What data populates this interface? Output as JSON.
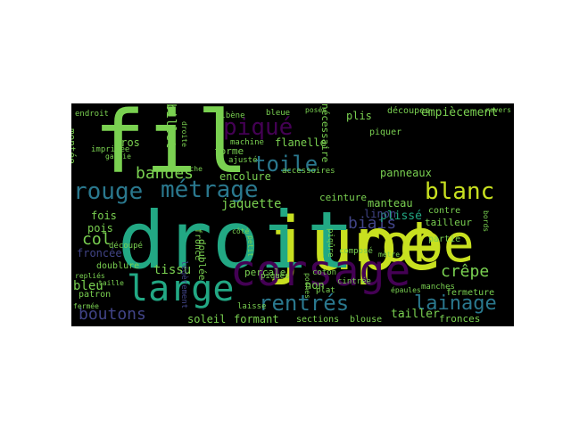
{
  "palette": {
    "yellow_green": "#c8e020",
    "light_green": "#7ad151",
    "teal": "#22a884",
    "blue": "#2a788e",
    "indigo": "#414487",
    "purple": "#440154",
    "deep_purple": "#3b1c5a"
  },
  "words": [
    {
      "text": "jupe",
      "color": "yellow_green"
    },
    {
      "text": "fil",
      "color": "light_green"
    },
    {
      "text": "droit",
      "color": "teal"
    },
    {
      "text": "robe",
      "color": "yellow_green"
    },
    {
      "text": "corsage",
      "color": "purple"
    },
    {
      "text": "large",
      "color": "teal"
    },
    {
      "text": "métrage",
      "color": "blue"
    },
    {
      "text": "piqué",
      "color": "purple"
    },
    {
      "text": "toile",
      "color": "blue"
    },
    {
      "text": "blanc",
      "color": "yellow_green"
    },
    {
      "text": "rouge",
      "color": "blue"
    },
    {
      "text": "rentrés",
      "color": "blue"
    },
    {
      "text": "lainage",
      "color": "blue"
    },
    {
      "text": "boutons",
      "color": "indigo"
    },
    {
      "text": "bandes",
      "color": "light_green"
    },
    {
      "text": "biais",
      "color": "indigo"
    },
    {
      "text": "col",
      "color": "light_green"
    },
    {
      "text": "crêpe",
      "color": "light_green"
    },
    {
      "text": "tissu",
      "color": "light_green"
    },
    {
      "text": "empiècement",
      "color": "light_green"
    },
    {
      "text": "jaquette",
      "color": "light_green"
    },
    {
      "text": "encolure",
      "color": "light_green"
    },
    {
      "text": "ceinture",
      "color": "light_green"
    },
    {
      "text": "panneaux",
      "color": "light_green"
    },
    {
      "text": "manteau",
      "color": "light_green"
    },
    {
      "text": "tailleur",
      "color": "light_green"
    },
    {
      "text": "contre",
      "color": "light_green"
    },
    {
      "text": "plissé",
      "color": "teal"
    },
    {
      "text": "partie",
      "color": "light_green"
    },
    {
      "text": "linon",
      "color": "indigo"
    },
    {
      "text": "flanelle",
      "color": "light_green"
    },
    {
      "text": "forme",
      "color": "light_green"
    },
    {
      "text": "machine",
      "color": "light_green"
    },
    {
      "text": "ajusté",
      "color": "light_green"
    },
    {
      "text": "gauche",
      "color": "light_green"
    },
    {
      "text": "bleue",
      "color": "light_green"
    },
    {
      "text": "albène",
      "color": "light_green"
    },
    {
      "text": "billet",
      "color": "light_green"
    },
    {
      "text": "plis",
      "color": "light_green"
    },
    {
      "text": "découpes",
      "color": "light_green"
    },
    {
      "text": "piquer",
      "color": "light_green"
    },
    {
      "text": "nécessaire",
      "color": "light_green"
    },
    {
      "text": "accessoires",
      "color": "light_green"
    },
    {
      "text": "endroit",
      "color": "light_green"
    },
    {
      "text": "imprimée",
      "color": "light_green"
    },
    {
      "text": "garnie",
      "color": "light_green"
    },
    {
      "text": "gros",
      "color": "light_green"
    },
    {
      "text": "montée",
      "color": "light_green"
    },
    {
      "text": "fois",
      "color": "light_green"
    },
    {
      "text": "pois",
      "color": "light_green"
    },
    {
      "text": "froncée",
      "color": "indigo"
    },
    {
      "text": "bleu",
      "color": "light_green"
    },
    {
      "text": "doublure",
      "color": "light_green"
    },
    {
      "text": "patron",
      "color": "light_green"
    },
    {
      "text": "taille",
      "color": "light_green"
    },
    {
      "text": "fermée",
      "color": "light_green"
    },
    {
      "text": "légèrement",
      "color": "indigo"
    },
    {
      "text": "découpé",
      "color": "light_green"
    },
    {
      "text": "doublée",
      "color": "light_green"
    },
    {
      "text": "froncé",
      "color": "light_green"
    },
    {
      "text": "soleil",
      "color": "light_green"
    },
    {
      "text": "laisse",
      "color": "light_green"
    },
    {
      "text": "formant",
      "color": "light_green"
    },
    {
      "text": "percale",
      "color": "light_green"
    },
    {
      "text": "petit",
      "color": "light_green"
    },
    {
      "text": "côté",
      "color": "light_green"
    },
    {
      "text": "piqués",
      "color": "light_green"
    },
    {
      "text": "sections",
      "color": "light_green"
    },
    {
      "text": "coton",
      "color": "light_green"
    },
    {
      "text": "non",
      "color": "light_green"
    },
    {
      "text": "plat",
      "color": "light_green"
    },
    {
      "text": "cintrée",
      "color": "light_green"
    },
    {
      "text": "piqûre",
      "color": "light_green"
    },
    {
      "text": "poches",
      "color": "light_green"
    },
    {
      "text": "blouse",
      "color": "light_green"
    },
    {
      "text": "tailler",
      "color": "light_green"
    },
    {
      "text": "fronces",
      "color": "light_green"
    },
    {
      "text": "composé",
      "color": "light_green"
    },
    {
      "text": "mètre",
      "color": "light_green"
    },
    {
      "text": "manches",
      "color": "light_green"
    },
    {
      "text": "fermeture",
      "color": "light_green"
    },
    {
      "text": "épaules",
      "color": "light_green"
    },
    {
      "text": "repliés",
      "color": "light_green"
    },
    {
      "text": "droite",
      "color": "light_green"
    },
    {
      "text": "posés",
      "color": "light_green"
    },
    {
      "text": "bords",
      "color": "light_green"
    },
    {
      "text": "revers",
      "color": "light_green"
    }
  ]
}
